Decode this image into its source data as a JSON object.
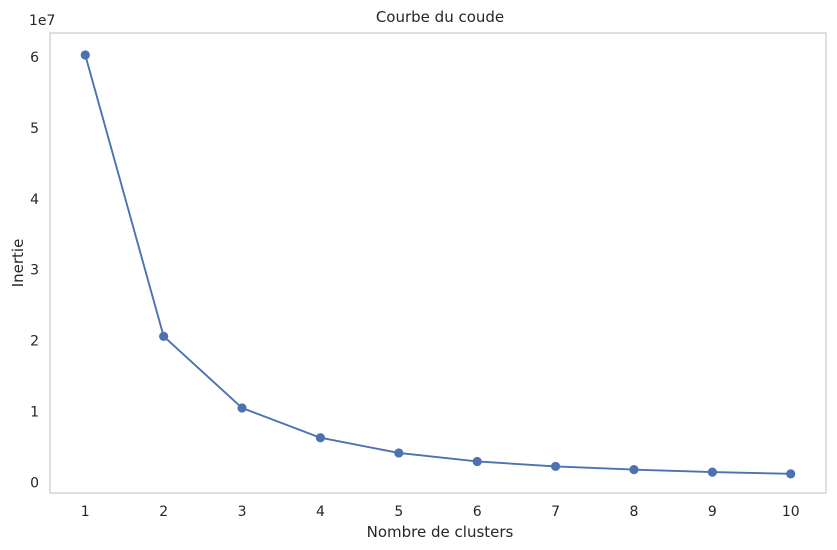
{
  "chart_data": {
    "type": "line",
    "title": "Courbe du coude",
    "xlabel": "Nombre de clusters",
    "ylabel": "Inertie",
    "y_offset_label": "1e7",
    "x": [
      1,
      2,
      3,
      4,
      5,
      6,
      7,
      8,
      9,
      10
    ],
    "x_ticks": [
      1,
      2,
      3,
      4,
      5,
      6,
      7,
      8,
      9,
      10
    ],
    "y_ticks": [
      0,
      1,
      2,
      3,
      4,
      5,
      6
    ],
    "y_tick_unit": 10000000,
    "xlim": [
      0.55,
      10.45
    ],
    "ylim": [
      -1500000,
      63400000
    ],
    "grid": false,
    "markers": true,
    "series": [
      {
        "color": "#4c72b0",
        "values": [
          60300000,
          20600000,
          10500000,
          6300000,
          4150000,
          2950000,
          2250000,
          1800000,
          1450000,
          1200000
        ]
      }
    ]
  }
}
